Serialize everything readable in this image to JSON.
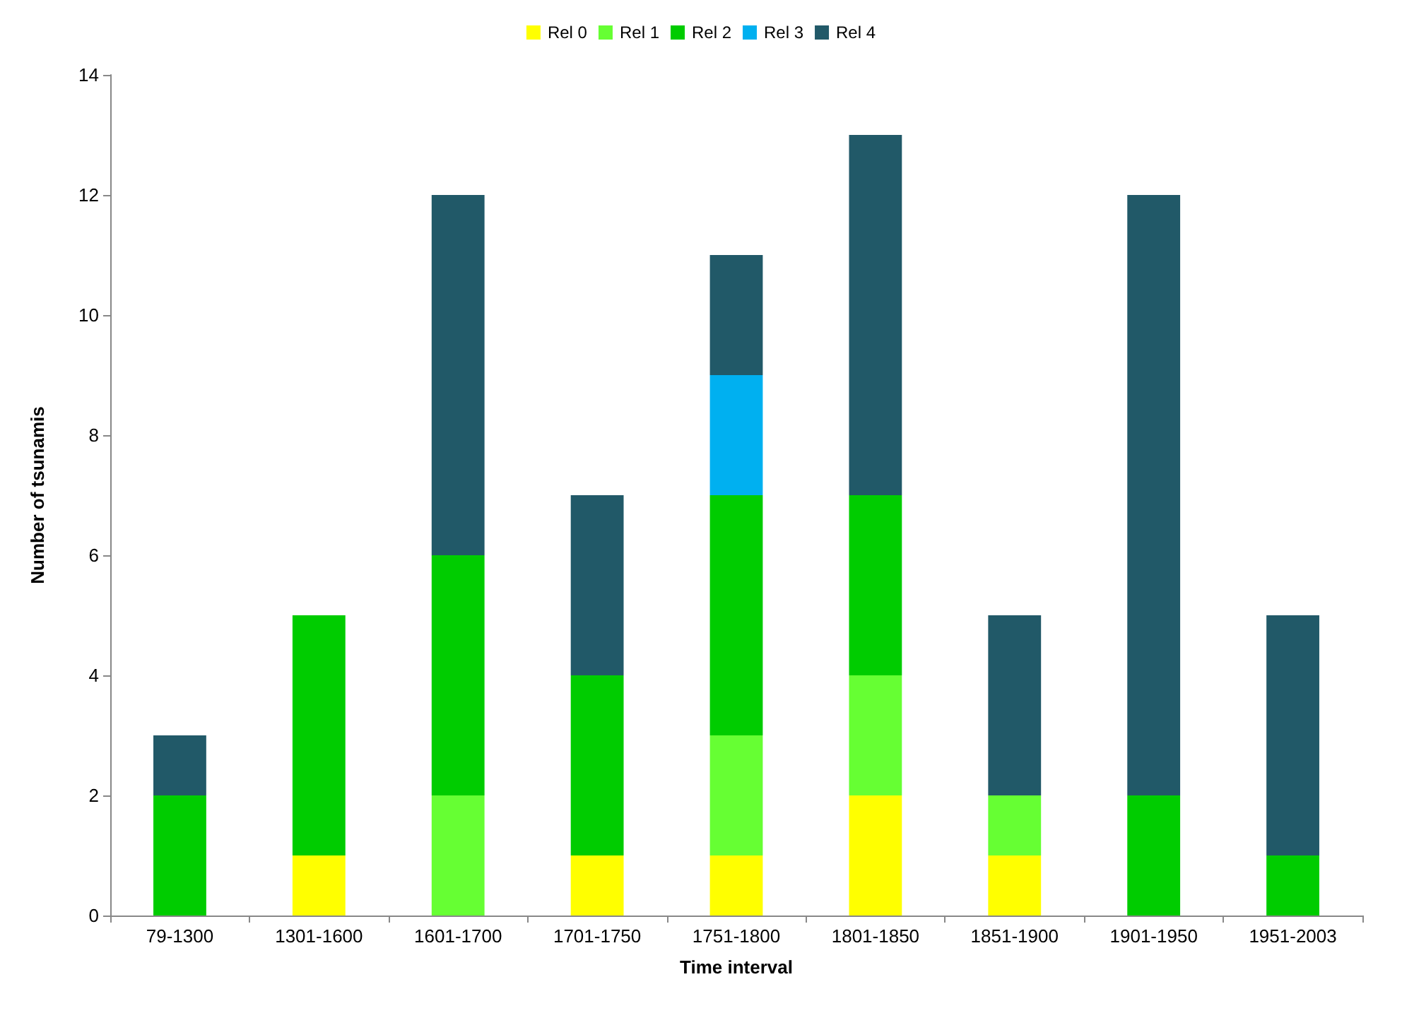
{
  "chart_data": {
    "type": "bar",
    "stacked": true,
    "xlabel": "Time interval",
    "ylabel": "Number of tsunamis",
    "categories": [
      "79-1300",
      "1301-1600",
      "1601-1700",
      "1701-1750",
      "1751-1800",
      "1801-1850",
      "1851-1900",
      "1901-1950",
      "1951-2003"
    ],
    "series": [
      {
        "name": "Rel 0",
        "color": "#ffff00",
        "values": [
          0,
          1,
          0,
          1,
          1,
          2,
          1,
          0,
          0
        ]
      },
      {
        "name": "Rel 1",
        "color": "#66ff33",
        "values": [
          0,
          0,
          2,
          0,
          2,
          2,
          1,
          0,
          0
        ]
      },
      {
        "name": "Rel 2",
        "color": "#00cc00",
        "values": [
          2,
          4,
          4,
          3,
          4,
          3,
          0,
          2,
          1
        ]
      },
      {
        "name": "Rel 3",
        "color": "#00b0f0",
        "values": [
          0,
          0,
          0,
          0,
          2,
          0,
          0,
          0,
          0
        ]
      },
      {
        "name": "Rel 4",
        "color": "#215968",
        "values": [
          1,
          0,
          6,
          3,
          2,
          6,
          3,
          10,
          4
        ]
      }
    ],
    "ylim": [
      0,
      14
    ],
    "yticks": [
      0,
      2,
      4,
      6,
      8,
      10,
      12,
      14
    ],
    "grid": false,
    "legend": "top"
  }
}
